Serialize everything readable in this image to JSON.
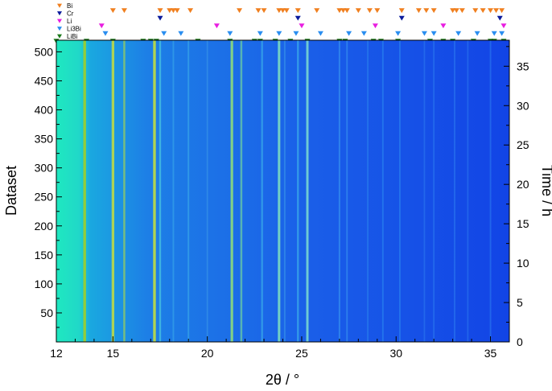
{
  "chart_data": {
    "type": "heatmap",
    "xlabel": "2θ / °",
    "ylabel_left": "Dataset",
    "ylabel_right": "Time / h",
    "xlim": [
      12,
      36
    ],
    "ylim_left": [
      0,
      520
    ],
    "ylim_right": [
      0,
      38.3
    ],
    "x_ticks": [
      12,
      15,
      20,
      25,
      30,
      35
    ],
    "y_ticks_left": [
      50,
      100,
      150,
      200,
      250,
      300,
      350,
      400,
      450,
      500
    ],
    "y_ticks_right": [
      0,
      5,
      10,
      15,
      20,
      25,
      30,
      35
    ],
    "bright_lines": [
      {
        "x": 13.5,
        "intensity": 1.0,
        "color": "#9acd32"
      },
      {
        "x": 15.0,
        "intensity": 0.95,
        "color": "#b8d84a"
      },
      {
        "x": 15.6,
        "intensity": 0.6,
        "color": "#9bcf5a"
      },
      {
        "x": 17.2,
        "intensity": 1.0,
        "color": "#b8d84a"
      },
      {
        "x": 17.5,
        "intensity": 0.5,
        "color": "#4fd0e0"
      },
      {
        "x": 18.2,
        "intensity": 0.3,
        "color": "#3fb0e8"
      },
      {
        "x": 19.0,
        "intensity": 0.35,
        "color": "#3fb0e8"
      },
      {
        "x": 20.0,
        "intensity": 0.25,
        "color": "#3fa0e8"
      },
      {
        "x": 21.3,
        "intensity": 0.9,
        "color": "#8fdc7a"
      },
      {
        "x": 21.8,
        "intensity": 0.6,
        "color": "#6fd0a0"
      },
      {
        "x": 22.9,
        "intensity": 0.45,
        "color": "#3fb8e8"
      },
      {
        "x": 23.8,
        "intensity": 0.85,
        "color": "#7fe0c0"
      },
      {
        "x": 24.1,
        "intensity": 0.3,
        "color": "#3fa0e8"
      },
      {
        "x": 24.8,
        "intensity": 0.5,
        "color": "#3fb8e8"
      },
      {
        "x": 25.3,
        "intensity": 0.8,
        "color": "#7fe0d0"
      },
      {
        "x": 27.0,
        "intensity": 0.35,
        "color": "#3fa0f0"
      },
      {
        "x": 27.4,
        "intensity": 0.3,
        "color": "#3fa0f0"
      },
      {
        "x": 28.5,
        "intensity": 0.25,
        "color": "#3090f0"
      },
      {
        "x": 29.3,
        "intensity": 0.3,
        "color": "#3090f0"
      },
      {
        "x": 30.2,
        "intensity": 0.3,
        "color": "#3090f0"
      },
      {
        "x": 31.5,
        "intensity": 0.25,
        "color": "#3080f0"
      },
      {
        "x": 32.0,
        "intensity": 0.3,
        "color": "#3080f0"
      },
      {
        "x": 33.1,
        "intensity": 0.3,
        "color": "#3080f0"
      },
      {
        "x": 33.8,
        "intensity": 0.25,
        "color": "#3080f0"
      },
      {
        "x": 35.0,
        "intensity": 0.3,
        "color": "#3080f0"
      }
    ],
    "legend": [
      {
        "name": "Bi",
        "color": "#f07f1e",
        "positions": [
          15.0,
          15.6,
          17.5,
          18.0,
          18.2,
          18.4,
          19.1,
          21.7,
          22.7,
          23.0,
          23.8,
          24.0,
          24.2,
          24.8,
          25.8,
          27.0,
          27.2,
          27.4,
          28.0,
          28.6,
          29.0,
          30.3,
          31.2,
          31.6,
          32.0,
          33.0,
          33.2,
          33.5,
          34.2,
          34.6,
          35.0,
          35.3,
          35.6
        ]
      },
      {
        "name": "Cr",
        "color": "#0a1a9c",
        "positions": [
          17.5,
          24.8,
          30.3,
          35.5
        ]
      },
      {
        "name": "Li",
        "color": "#e81ee0",
        "positions": [
          14.4,
          20.5,
          25.0,
          28.9,
          32.5,
          35.7
        ]
      },
      {
        "name": "Li3Bi",
        "color": "#2a8ef0",
        "positions": [
          14.6,
          17.7,
          18.6,
          21.2,
          22.8,
          23.8,
          24.7,
          26.0,
          27.5,
          28.3,
          30.1,
          31.5,
          32.0,
          33.3,
          34.3,
          35.2,
          35.6
        ]
      },
      {
        "name": "LiBi",
        "color": "#1a7a1a",
        "positions": [
          12.0,
          13.6,
          15.0,
          16.6,
          17.0,
          17.3,
          19.5,
          21.2,
          22.5,
          22.8,
          23.6,
          24.4,
          25.3,
          27.0,
          27.3,
          28.8,
          29.2,
          30.1,
          31.8,
          32.5,
          33.0,
          34.1,
          35.0,
          35.2,
          35.7
        ]
      }
    ]
  }
}
